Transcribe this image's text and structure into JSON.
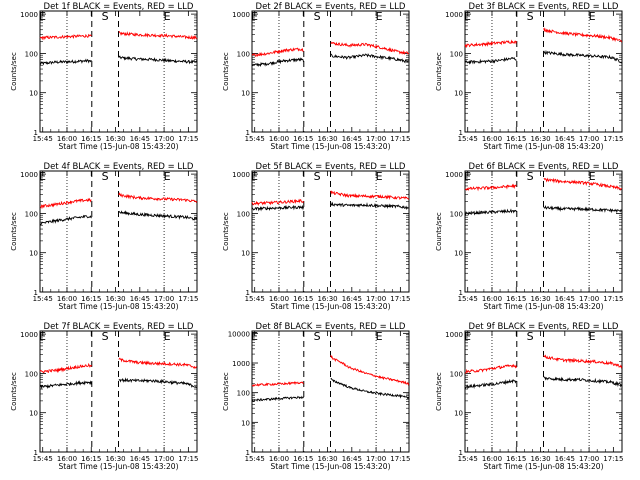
{
  "chart_data": {
    "type": "line",
    "shared": {
      "xlabel": "Start Time (15-Jun-08 15:43:20)",
      "ylabel": "Counts/sec",
      "x_ticks": [
        "15:45",
        "16:00",
        "16:15",
        "16:30",
        "16:45",
        "17:00",
        "17:15"
      ],
      "x_tick_minutes": [
        1.67,
        16.67,
        31.67,
        46.67,
        61.67,
        76.67,
        91.67
      ],
      "xlim_minutes": [
        0,
        97
      ],
      "y_scale": "log",
      "dotted_vlines_minutes": [
        16.67,
        76.67
      ],
      "dashed_vlines_minutes": [
        32,
        48.5
      ],
      "markers": [
        {
          "label": "E",
          "minute": 1.5
        },
        {
          "label": "S",
          "minute": 40.2
        },
        {
          "label": "E",
          "minute": 78.5
        }
      ],
      "legend": "in title",
      "colors": {
        "events": "#000000",
        "lld": "#ff0000"
      }
    },
    "panels": [
      {
        "title": "Det 1f BLACK = Events, RED = LLD",
        "yticks": [
          1,
          10,
          100,
          1000
        ],
        "ylim": [
          1,
          1200
        ],
        "series": [
          {
            "name": "Events",
            "x": [
              0,
              10,
              20,
              30,
              32,
              48.5,
              50,
              60,
              70,
              80,
              90,
              97
            ],
            "y": [
              55,
              60,
              62,
              65,
              62,
              80,
              78,
              72,
              70,
              65,
              62,
              60
            ]
          },
          {
            "name": "LLD",
            "x": [
              0,
              10,
              20,
              30,
              32,
              48.5,
              50,
              60,
              70,
              80,
              90,
              97
            ],
            "y": [
              250,
              260,
              270,
              280,
              270,
              340,
              320,
              300,
              290,
              280,
              260,
              250
            ]
          }
        ]
      },
      {
        "title": "Det 2f BLACK = Events, RED = LLD",
        "yticks": [
          1,
          10,
          100,
          1000
        ],
        "ylim": [
          1,
          1200
        ],
        "series": [
          {
            "name": "Events",
            "x": [
              0,
              10,
              20,
              30,
              32,
              48.5,
              50,
              60,
              70,
              80,
              90,
              97
            ],
            "y": [
              50,
              55,
              65,
              70,
              65,
              90,
              85,
              78,
              90,
              80,
              70,
              60
            ]
          },
          {
            "name": "LLD",
            "x": [
              0,
              10,
              20,
              30,
              32,
              48.5,
              50,
              60,
              70,
              80,
              90,
              97
            ],
            "y": [
              90,
              100,
              120,
              130,
              120,
              200,
              180,
              160,
              170,
              140,
              110,
              100
            ]
          }
        ]
      },
      {
        "title": "Det 3f BLACK = Events, RED = LLD",
        "yticks": [
          1,
          10,
          100,
          1000
        ],
        "ylim": [
          1,
          1200
        ],
        "series": [
          {
            "name": "Events",
            "x": [
              0,
              10,
              20,
              30,
              32,
              48.5,
              50,
              60,
              70,
              80,
              90,
              97
            ],
            "y": [
              60,
              62,
              65,
              75,
              70,
              110,
              105,
              95,
              90,
              85,
              80,
              60
            ]
          },
          {
            "name": "LLD",
            "x": [
              0,
              10,
              20,
              30,
              32,
              48.5,
              50,
              60,
              70,
              80,
              90,
              97
            ],
            "y": [
              160,
              170,
              185,
              200,
              190,
              420,
              390,
              330,
              300,
              280,
              250,
              200
            ]
          }
        ]
      },
      {
        "title": "Det 4f BLACK = Events, RED = LLD",
        "yticks": [
          1,
          10,
          100,
          1000
        ],
        "ylim": [
          1,
          1200
        ],
        "series": [
          {
            "name": "Events",
            "x": [
              0,
              10,
              20,
              30,
              32,
              48.5,
              50,
              60,
              70,
              80,
              90,
              97
            ],
            "y": [
              55,
              65,
              75,
              85,
              80,
              110,
              105,
              95,
              90,
              85,
              80,
              70
            ]
          },
          {
            "name": "LLD",
            "x": [
              0,
              10,
              20,
              30,
              32,
              48.5,
              50,
              60,
              70,
              80,
              90,
              97
            ],
            "y": [
              150,
              170,
              200,
              220,
              210,
              310,
              290,
              250,
              240,
              230,
              220,
              200
            ]
          }
        ]
      },
      {
        "title": "Det 5f BLACK = Events, RED = LLD",
        "yticks": [
          1,
          10,
          100,
          1000
        ],
        "ylim": [
          1,
          1200
        ],
        "series": [
          {
            "name": "Events",
            "x": [
              0,
              10,
              20,
              30,
              32,
              48.5,
              50,
              60,
              70,
              80,
              90,
              97
            ],
            "y": [
              130,
              135,
              140,
              145,
              140,
              180,
              170,
              160,
              165,
              155,
              150,
              140
            ]
          },
          {
            "name": "LLD",
            "x": [
              0,
              10,
              20,
              30,
              32,
              48.5,
              50,
              60,
              70,
              80,
              90,
              97
            ],
            "y": [
              180,
              185,
              195,
              210,
              200,
              360,
              330,
              280,
              275,
              270,
              250,
              240
            ]
          }
        ]
      },
      {
        "title": "Det 6f BLACK = Events, RED = LLD",
        "yticks": [
          1,
          10,
          100,
          1000
        ],
        "ylim": [
          1,
          1200
        ],
        "series": [
          {
            "name": "Events",
            "x": [
              0,
              10,
              20,
              30,
              32,
              48.5,
              50,
              60,
              70,
              80,
              90,
              97
            ],
            "y": [
              100,
              105,
              110,
              115,
              110,
              145,
              140,
              130,
              130,
              125,
              120,
              115
            ]
          },
          {
            "name": "LLD",
            "x": [
              0,
              10,
              20,
              30,
              32,
              48.5,
              50,
              60,
              70,
              80,
              90,
              97
            ],
            "y": [
              420,
              440,
              460,
              500,
              480,
              760,
              720,
              650,
              620,
              560,
              480,
              420
            ]
          }
        ]
      },
      {
        "title": "Det 7f BLACK = Events, RED = LLD",
        "yticks": [
          1,
          10,
          100,
          1000
        ],
        "ylim": [
          1,
          1200
        ],
        "series": [
          {
            "name": "Events",
            "x": [
              0,
              10,
              20,
              30,
              32,
              48.5,
              50,
              60,
              70,
              80,
              90,
              97
            ],
            "y": [
              45,
              50,
              55,
              60,
              58,
              70,
              68,
              65,
              65,
              60,
              55,
              45
            ]
          },
          {
            "name": "LLD",
            "x": [
              0,
              10,
              20,
              30,
              32,
              48.5,
              50,
              60,
              70,
              80,
              90,
              97
            ],
            "y": [
              110,
              120,
              140,
              160,
              150,
              240,
              220,
              190,
              180,
              175,
              165,
              140
            ]
          }
        ]
      },
      {
        "title": "Det 8f BLACK = Events, RED = LLD",
        "yticks": [
          1,
          10,
          100,
          1000,
          10000
        ],
        "ylim": [
          1,
          12000
        ],
        "series": [
          {
            "name": "Events",
            "x": [
              0,
              10,
              20,
              30,
              32,
              48.5,
              50,
              60,
              70,
              80,
              90,
              97
            ],
            "y": [
              55,
              60,
              65,
              70,
              68,
              300,
              250,
              150,
              110,
              90,
              80,
              65
            ]
          },
          {
            "name": "LLD",
            "x": [
              0,
              10,
              20,
              30,
              32,
              48.5,
              50,
              60,
              70,
              80,
              90,
              97
            ],
            "y": [
              180,
              190,
              200,
              220,
              210,
              1800,
              1400,
              700,
              450,
              320,
              250,
              200
            ]
          }
        ]
      },
      {
        "title": "Det 9f BLACK = Events, RED = LLD",
        "yticks": [
          1,
          10,
          100,
          1000
        ],
        "ylim": [
          1,
          1200
        ],
        "series": [
          {
            "name": "Events",
            "x": [
              0,
              10,
              20,
              30,
              32,
              48.5,
              50,
              60,
              70,
              80,
              90,
              97
            ],
            "y": [
              45,
              50,
              55,
              65,
              60,
              80,
              75,
              70,
              70,
              65,
              60,
              50
            ]
          },
          {
            "name": "LLD",
            "x": [
              0,
              10,
              20,
              30,
              32,
              48.5,
              50,
              60,
              70,
              80,
              90,
              97
            ],
            "y": [
              110,
              120,
              140,
              160,
              150,
              280,
              260,
              220,
              210,
              200,
              180,
              150
            ]
          }
        ]
      }
    ]
  }
}
